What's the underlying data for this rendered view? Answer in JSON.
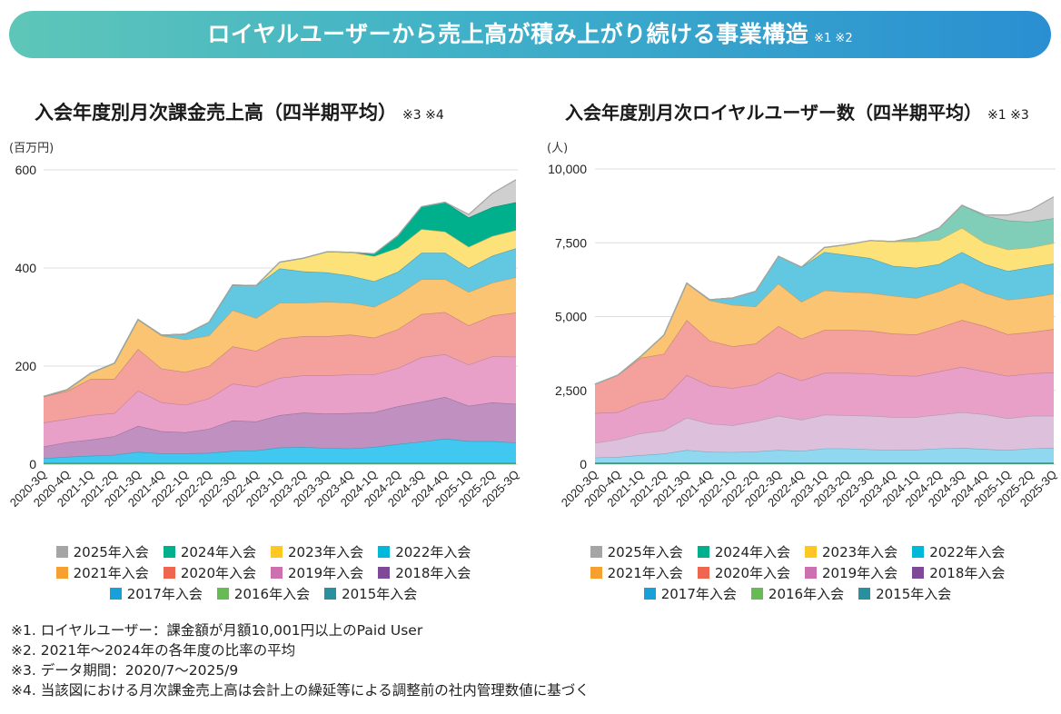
{
  "banner": {
    "title": "ロイヤルユーザーから売上高が積み上がり続ける事業構造",
    "note": "※1 ※2"
  },
  "footnotes": [
    "※1. ロイヤルユーザー：課金額が月額10,001円以上のPaid User",
    "※2. 2021年〜2024年の各年度の比率の平均",
    "※3. データ期間：2020/7〜2025/9",
    "※4. 当該図における月次課金売上高は会計上の繰延等による調整前の社内管理数値に基づく"
  ],
  "legend_colors": {
    "2025年入会": "#a5a5a5",
    "2024年入会": "#00b08c",
    "2023年入会": "#ffc820",
    "2022年入会": "#00b8d8",
    "2021年入会": "#f5a030",
    "2020年入会": "#ee6650",
    "2019年入会": "#cc70b0",
    "2018年入会": "#7e4a98",
    "2017年入会": "#18a0d8",
    "2016年入会": "#66bb55",
    "2015年入会": "#2a90a0"
  },
  "chart_data": [
    {
      "type": "area",
      "stacked": true,
      "title": "入会年度別月次課金売上高（四半期平均）",
      "title_note": "※3 ※4",
      "ylabel": "(百万円)",
      "ylim": [
        0,
        600
      ],
      "yticks": [
        "0",
        "200",
        "400",
        "600"
      ],
      "ytick_values": [
        0,
        200,
        400,
        600
      ],
      "grid": true,
      "legend": "bottom",
      "categories": [
        "2020-3Q",
        "2020-4Q",
        "2021-1Q",
        "2021-2Q",
        "2021-3Q",
        "2021-4Q",
        "2022-1Q",
        "2022-2Q",
        "2022-3Q",
        "2022-4Q",
        "2023-1Q",
        "2023-2Q",
        "2023-3Q",
        "2023-4Q",
        "2024-1Q",
        "2024-2Q",
        "2024-3Q",
        "2024-4Q",
        "2025-1Q",
        "2025-2Q",
        "2025-3Q"
      ],
      "series": [
        {
          "name": "2015年入会",
          "fill": "#3aa0b0",
          "values": [
            1,
            1,
            1,
            1,
            1,
            1,
            1,
            1,
            1,
            1,
            1,
            1,
            1,
            1,
            1,
            1,
            1,
            1,
            1,
            1,
            1
          ]
        },
        {
          "name": "2016年入会",
          "fill": "#80c060",
          "values": [
            2,
            2,
            2,
            2,
            2,
            2,
            2,
            2,
            2,
            2,
            2,
            2,
            2,
            2,
            2,
            2,
            2,
            2,
            2,
            2,
            2
          ]
        },
        {
          "name": "2017年入会",
          "fill": "#40c8f0",
          "values": [
            9,
            12,
            14,
            16,
            22,
            19,
            19,
            20,
            24,
            25,
            31,
            32,
            30,
            29,
            32,
            38,
            43,
            49,
            44,
            44,
            41
          ]
        },
        {
          "name": "2018年入会",
          "fill": "#bf90c0",
          "values": [
            24,
            30,
            33,
            38,
            53,
            45,
            43,
            49,
            62,
            59,
            66,
            70,
            70,
            72,
            71,
            77,
            81,
            85,
            72,
            79,
            79
          ]
        },
        {
          "name": "2019年入会",
          "fill": "#e8a0c8",
          "values": [
            49,
            47,
            50,
            47,
            72,
            59,
            56,
            62,
            75,
            71,
            76,
            76,
            78,
            79,
            77,
            78,
            91,
            87,
            84,
            94,
            96
          ]
        },
        {
          "name": "2020年入会",
          "fill": "#f4a09c",
          "values": [
            53,
            57,
            74,
            70,
            85,
            69,
            67,
            66,
            76,
            73,
            80,
            80,
            80,
            81,
            75,
            79,
            88,
            86,
            80,
            83,
            90
          ]
        },
        {
          "name": "2021年入会",
          "fill": "#fac472",
          "values": [
            0,
            3,
            12,
            32,
            60,
            67,
            66,
            62,
            74,
            67,
            73,
            68,
            70,
            65,
            63,
            70,
            71,
            67,
            68,
            67,
            72
          ]
        },
        {
          "name": "2022年入会",
          "fill": "#62c8e2",
          "values": [
            0,
            0,
            0,
            0,
            0,
            1,
            11,
            27,
            51,
            66,
            70,
            64,
            60,
            55,
            52,
            47,
            54,
            54,
            49,
            55,
            59
          ]
        },
        {
          "name": "2023年入会",
          "fill": "#fde27a",
          "values": [
            0,
            0,
            0,
            0,
            0,
            0,
            0,
            0,
            0,
            0,
            13,
            27,
            42,
            48,
            51,
            49,
            48,
            43,
            43,
            40,
            37
          ]
        },
        {
          "name": "2024年入会",
          "fill": "#00b08c",
          "values": [
            0,
            0,
            0,
            0,
            0,
            0,
            0,
            0,
            0,
            0,
            0,
            0,
            0,
            0,
            5,
            25,
            46,
            60,
            60,
            59,
            57
          ]
        },
        {
          "name": "2025年入会",
          "fill": "#cfcfcf",
          "values": [
            0,
            0,
            0,
            0,
            0,
            0,
            0,
            0,
            0,
            0,
            0,
            0,
            0,
            0,
            0,
            0,
            0,
            0,
            6,
            28,
            46
          ]
        }
      ]
    },
    {
      "type": "area",
      "stacked": true,
      "title": "入会年度別月次ロイヤルユーザー数（四半期平均）",
      "title_note": "※1 ※3",
      "ylabel": "(人)",
      "ylim": [
        0,
        10000
      ],
      "yticks": [
        "0",
        "2,500",
        "5,000",
        "7,500",
        "10,000"
      ],
      "ytick_values": [
        0,
        2500,
        5000,
        7500,
        10000
      ],
      "grid": true,
      "legend": "bottom",
      "categories": [
        "2020-3Q",
        "2020-4Q",
        "2021-1Q",
        "2021-2Q",
        "2021-3Q",
        "2021-4Q",
        "2022-1Q",
        "2022-2Q",
        "2022-3Q",
        "2022-4Q",
        "2023-1Q",
        "2023-2Q",
        "2023-3Q",
        "2023-4Q",
        "2024-1Q",
        "2024-2Q",
        "2024-3Q",
        "2024-4Q",
        "2025-1Q",
        "2025-2Q",
        "2025-3Q"
      ],
      "series": [
        {
          "name": "2015年入会",
          "fill": "#3aa0b0",
          "values": [
            20,
            20,
            20,
            20,
            20,
            20,
            20,
            20,
            20,
            20,
            20,
            20,
            20,
            20,
            20,
            20,
            20,
            20,
            20,
            20,
            20
          ]
        },
        {
          "name": "2016年入会",
          "fill": "#70bb55",
          "values": [
            40,
            40,
            40,
            40,
            40,
            40,
            40,
            40,
            40,
            40,
            40,
            40,
            40,
            40,
            40,
            40,
            40,
            40,
            40,
            40,
            40
          ]
        },
        {
          "name": "2017年入会",
          "fill": "#90d8f0",
          "values": [
            165,
            185,
            247,
            298,
            421,
            360,
            349,
            370,
            421,
            390,
            472,
            472,
            442,
            421,
            431,
            472,
            493,
            452,
            421,
            472,
            493
          ]
        },
        {
          "name": "2018年入会",
          "fill": "#dcc0dc",
          "values": [
            491,
            594,
            737,
            788,
            1095,
            952,
            911,
            1023,
            1156,
            1055,
            1146,
            1126,
            1135,
            1116,
            1106,
            1146,
            1207,
            1177,
            1074,
            1105,
            1084
          ]
        },
        {
          "name": "2019年入会",
          "fill": "#e8a0c8",
          "values": [
            1014,
            921,
            1044,
            1075,
            1443,
            1289,
            1259,
            1249,
            1475,
            1330,
            1413,
            1433,
            1434,
            1412,
            1392,
            1464,
            1536,
            1453,
            1434,
            1434,
            1475
          ]
        },
        {
          "name": "2020年入会",
          "fill": "#f4a09c",
          "values": [
            982,
            1259,
            1515,
            1515,
            1863,
            1525,
            1412,
            1382,
            1566,
            1413,
            1454,
            1454,
            1453,
            1413,
            1402,
            1484,
            1586,
            1536,
            1412,
            1402,
            1463
          ]
        },
        {
          "name": "2021年入会",
          "fill": "#fac472",
          "values": [
            0,
            0,
            51,
            634,
            1249,
            1362,
            1403,
            1259,
            1443,
            1249,
            1341,
            1289,
            1280,
            1279,
            1238,
            1229,
            1280,
            1125,
            1167,
            1177,
            1198
          ]
        },
        {
          "name": "2022年入会",
          "fill": "#62c8e2",
          "values": [
            0,
            0,
            0,
            0,
            0,
            20,
            236,
            512,
            921,
            1177,
            1299,
            1249,
            1177,
            1014,
            1024,
            921,
            1023,
            973,
            972,
            1024,
            1023
          ]
        },
        {
          "name": "2023年入会",
          "fill": "#fde27a",
          "values": [
            0,
            0,
            0,
            0,
            0,
            0,
            0,
            0,
            0,
            0,
            154,
            358,
            593,
            828,
            890,
            819,
            819,
            716,
            727,
            665,
            696
          ]
        },
        {
          "name": "2024年入会",
          "fill": "#80cdb8",
          "values": [
            0,
            0,
            0,
            0,
            0,
            0,
            0,
            0,
            0,
            0,
            0,
            0,
            0,
            0,
            133,
            409,
            768,
            921,
            993,
            870,
            840
          ]
        },
        {
          "name": "2025年入会",
          "fill": "#cfcfcf",
          "values": [
            0,
            0,
            0,
            0,
            0,
            0,
            0,
            0,
            0,
            0,
            0,
            0,
            0,
            0,
            0,
            0,
            0,
            31,
            184,
            409,
            726
          ]
        }
      ]
    }
  ]
}
